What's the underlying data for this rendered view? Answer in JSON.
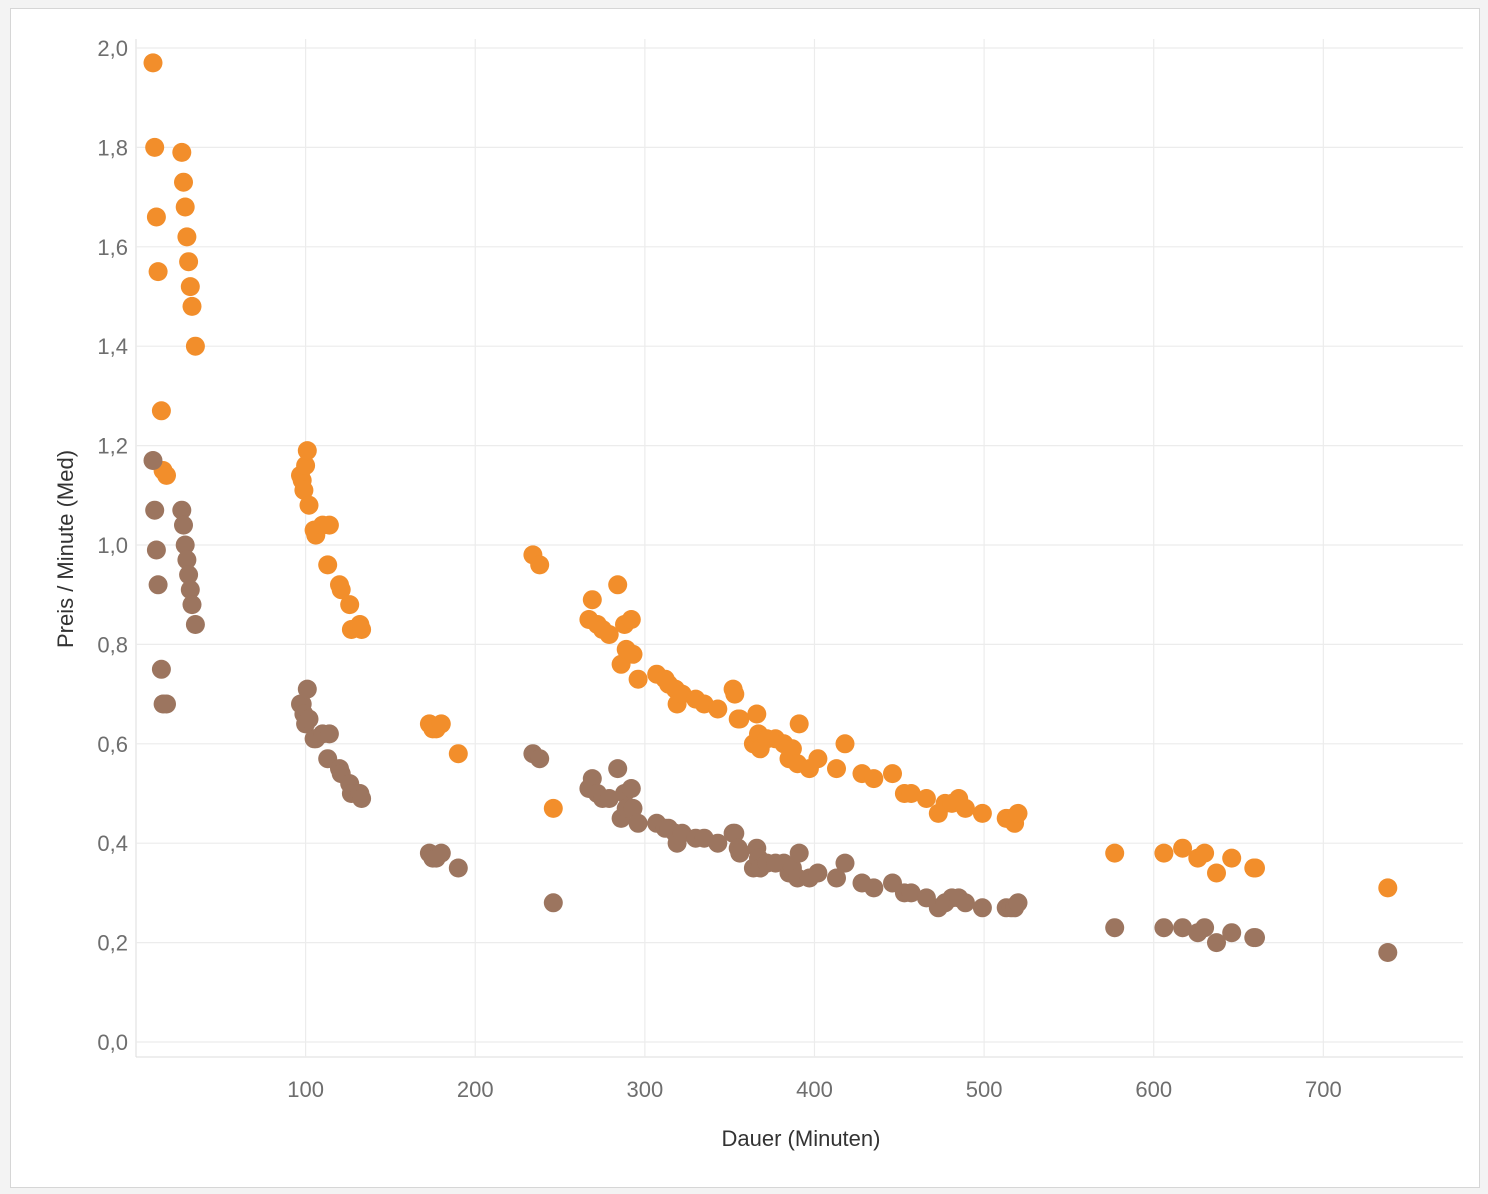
{
  "chart_data": {
    "type": "scatter",
    "xlabel": "Dauer (Minuten)",
    "ylabel": "Preis / Minute (Med)",
    "xlim": [
      0,
      780
    ],
    "ylim": [
      0,
      2.0
    ],
    "x_ticks": [
      "100",
      "200",
      "300",
      "400",
      "500",
      "600",
      "700"
    ],
    "x_tick_values": [
      100,
      200,
      300,
      400,
      500,
      600,
      700
    ],
    "y_ticks": [
      "0,0",
      "0,2",
      "0,4",
      "0,6",
      "0,8",
      "1,0",
      "1,2",
      "1,4",
      "1,6",
      "1,8",
      "2,0"
    ],
    "y_tick_values": [
      0,
      0.2,
      0.4,
      0.6,
      0.8,
      1.0,
      1.2,
      1.4,
      1.6,
      1.8,
      2.0
    ],
    "grid": true,
    "legend": "none",
    "series": [
      {
        "color": "#f28e2b",
        "points": [
          [
            10,
            1.97
          ],
          [
            11,
            1.8
          ],
          [
            12,
            1.66
          ],
          [
            13,
            1.55
          ],
          [
            15,
            1.27
          ],
          [
            16,
            1.15
          ],
          [
            18,
            1.14
          ],
          [
            27,
            1.79
          ],
          [
            28,
            1.73
          ],
          [
            29,
            1.68
          ],
          [
            30,
            1.62
          ],
          [
            31,
            1.57
          ],
          [
            32,
            1.52
          ],
          [
            33,
            1.48
          ],
          [
            35,
            1.4
          ],
          [
            97,
            1.14
          ],
          [
            98,
            1.13
          ],
          [
            99,
            1.11
          ],
          [
            100,
            1.16
          ],
          [
            101,
            1.19
          ],
          [
            102,
            1.08
          ],
          [
            105,
            1.03
          ],
          [
            106,
            1.02
          ],
          [
            110,
            1.04
          ],
          [
            114,
            1.04
          ],
          [
            113,
            0.96
          ],
          [
            120,
            0.92
          ],
          [
            121,
            0.91
          ],
          [
            126,
            0.88
          ],
          [
            127,
            0.83
          ],
          [
            132,
            0.84
          ],
          [
            133,
            0.83
          ],
          [
            173,
            0.64
          ],
          [
            175,
            0.63
          ],
          [
            177,
            0.63
          ],
          [
            180,
            0.64
          ],
          [
            190,
            0.58
          ],
          [
            234,
            0.98
          ],
          [
            238,
            0.96
          ],
          [
            246,
            0.47
          ],
          [
            267,
            0.85
          ],
          [
            269,
            0.89
          ],
          [
            272,
            0.84
          ],
          [
            275,
            0.83
          ],
          [
            279,
            0.82
          ],
          [
            284,
            0.92
          ],
          [
            286,
            0.76
          ],
          [
            288,
            0.84
          ],
          [
            289,
            0.79
          ],
          [
            292,
            0.85
          ],
          [
            293,
            0.78
          ],
          [
            296,
            0.73
          ],
          [
            307,
            0.74
          ],
          [
            312,
            0.73
          ],
          [
            314,
            0.72
          ],
          [
            318,
            0.71
          ],
          [
            319,
            0.68
          ],
          [
            322,
            0.7
          ],
          [
            330,
            0.69
          ],
          [
            335,
            0.68
          ],
          [
            343,
            0.67
          ],
          [
            352,
            0.71
          ],
          [
            353,
            0.7
          ],
          [
            355,
            0.65
          ],
          [
            356,
            0.65
          ],
          [
            364,
            0.6
          ],
          [
            366,
            0.66
          ],
          [
            367,
            0.62
          ],
          [
            368,
            0.59
          ],
          [
            372,
            0.61
          ],
          [
            377,
            0.61
          ],
          [
            382,
            0.6
          ],
          [
            385,
            0.57
          ],
          [
            387,
            0.59
          ],
          [
            390,
            0.56
          ],
          [
            391,
            0.64
          ],
          [
            397,
            0.55
          ],
          [
            402,
            0.57
          ],
          [
            413,
            0.55
          ],
          [
            418,
            0.6
          ],
          [
            428,
            0.54
          ],
          [
            435,
            0.53
          ],
          [
            446,
            0.54
          ],
          [
            453,
            0.5
          ],
          [
            457,
            0.5
          ],
          [
            466,
            0.49
          ],
          [
            473,
            0.46
          ],
          [
            477,
            0.48
          ],
          [
            481,
            0.48
          ],
          [
            485,
            0.49
          ],
          [
            489,
            0.47
          ],
          [
            499,
            0.46
          ],
          [
            513,
            0.45
          ],
          [
            516,
            0.45
          ],
          [
            518,
            0.44
          ],
          [
            520,
            0.46
          ],
          [
            577,
            0.38
          ],
          [
            606,
            0.38
          ],
          [
            617,
            0.39
          ],
          [
            626,
            0.37
          ],
          [
            630,
            0.38
          ],
          [
            637,
            0.34
          ],
          [
            646,
            0.37
          ],
          [
            659,
            0.35
          ],
          [
            660,
            0.35
          ],
          [
            738,
            0.31
          ]
        ]
      },
      {
        "color": "#9c755f",
        "points": [
          [
            10,
            1.17
          ],
          [
            11,
            1.07
          ],
          [
            12,
            0.99
          ],
          [
            13,
            0.92
          ],
          [
            15,
            0.75
          ],
          [
            16,
            0.68
          ],
          [
            18,
            0.68
          ],
          [
            27,
            1.07
          ],
          [
            28,
            1.04
          ],
          [
            29,
            1.0
          ],
          [
            30,
            0.97
          ],
          [
            31,
            0.94
          ],
          [
            32,
            0.91
          ],
          [
            33,
            0.88
          ],
          [
            35,
            0.84
          ],
          [
            97,
            0.68
          ],
          [
            98,
            0.68
          ],
          [
            99,
            0.66
          ],
          [
            100,
            0.64
          ],
          [
            101,
            0.71
          ],
          [
            102,
            0.65
          ],
          [
            105,
            0.61
          ],
          [
            106,
            0.61
          ],
          [
            110,
            0.62
          ],
          [
            114,
            0.62
          ],
          [
            113,
            0.57
          ],
          [
            120,
            0.55
          ],
          [
            121,
            0.54
          ],
          [
            126,
            0.52
          ],
          [
            127,
            0.5
          ],
          [
            132,
            0.5
          ],
          [
            133,
            0.49
          ],
          [
            173,
            0.38
          ],
          [
            175,
            0.37
          ],
          [
            177,
            0.37
          ],
          [
            180,
            0.38
          ],
          [
            190,
            0.35
          ],
          [
            234,
            0.58
          ],
          [
            238,
            0.57
          ],
          [
            246,
            0.28
          ],
          [
            267,
            0.51
          ],
          [
            269,
            0.53
          ],
          [
            272,
            0.5
          ],
          [
            275,
            0.49
          ],
          [
            279,
            0.49
          ],
          [
            284,
            0.55
          ],
          [
            286,
            0.45
          ],
          [
            288,
            0.5
          ],
          [
            289,
            0.47
          ],
          [
            292,
            0.51
          ],
          [
            293,
            0.47
          ],
          [
            296,
            0.44
          ],
          [
            307,
            0.44
          ],
          [
            312,
            0.43
          ],
          [
            314,
            0.43
          ],
          [
            318,
            0.42
          ],
          [
            319,
            0.4
          ],
          [
            322,
            0.42
          ],
          [
            330,
            0.41
          ],
          [
            335,
            0.41
          ],
          [
            343,
            0.4
          ],
          [
            352,
            0.42
          ],
          [
            353,
            0.42
          ],
          [
            355,
            0.39
          ],
          [
            356,
            0.38
          ],
          [
            364,
            0.35
          ],
          [
            366,
            0.39
          ],
          [
            367,
            0.37
          ],
          [
            368,
            0.35
          ],
          [
            372,
            0.36
          ],
          [
            377,
            0.36
          ],
          [
            382,
            0.36
          ],
          [
            385,
            0.34
          ],
          [
            387,
            0.35
          ],
          [
            390,
            0.33
          ],
          [
            391,
            0.38
          ],
          [
            397,
            0.33
          ],
          [
            402,
            0.34
          ],
          [
            413,
            0.33
          ],
          [
            418,
            0.36
          ],
          [
            428,
            0.32
          ],
          [
            435,
            0.31
          ],
          [
            446,
            0.32
          ],
          [
            453,
            0.3
          ],
          [
            457,
            0.3
          ],
          [
            466,
            0.29
          ],
          [
            473,
            0.27
          ],
          [
            477,
            0.28
          ],
          [
            481,
            0.29
          ],
          [
            485,
            0.29
          ],
          [
            489,
            0.28
          ],
          [
            499,
            0.27
          ],
          [
            513,
            0.27
          ],
          [
            516,
            0.27
          ],
          [
            518,
            0.27
          ],
          [
            520,
            0.28
          ],
          [
            577,
            0.23
          ],
          [
            606,
            0.23
          ],
          [
            617,
            0.23
          ],
          [
            626,
            0.22
          ],
          [
            630,
            0.23
          ],
          [
            637,
            0.2
          ],
          [
            646,
            0.22
          ],
          [
            659,
            0.21
          ],
          [
            660,
            0.21
          ],
          [
            738,
            0.18
          ]
        ]
      }
    ]
  }
}
